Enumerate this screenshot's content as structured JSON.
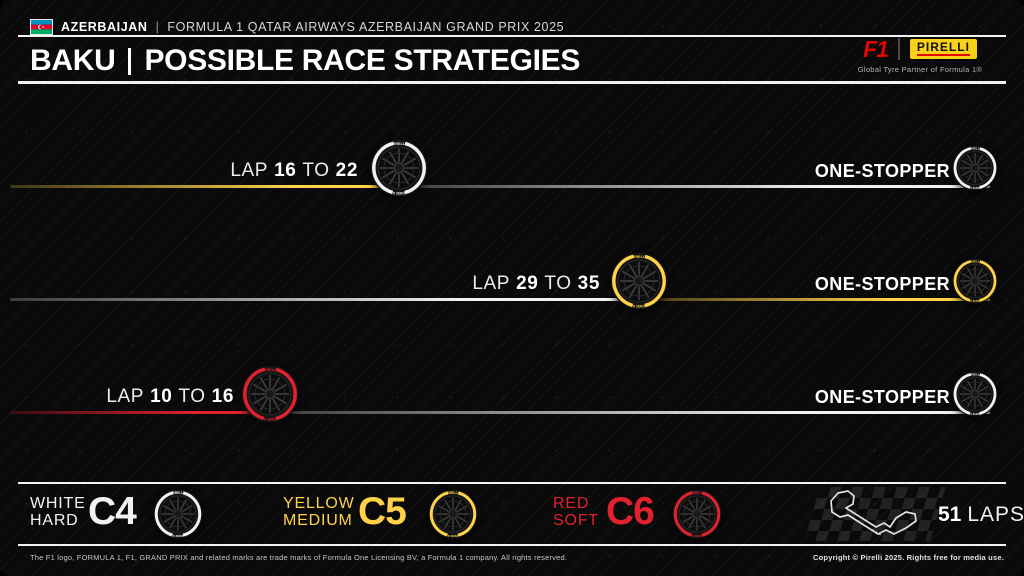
{
  "header": {
    "country": "AZERBAIJAN",
    "separator": "|",
    "event": "FORMULA 1 QATAR AIRWAYS AZERBAIJAN GRAND PRIX 2025",
    "city": "BAKU",
    "title": "POSSIBLE RACE STRATEGIES",
    "f1_logo_text": "F1",
    "pirelli_logo_text": "PIRELLI",
    "partner_caption": "Global Tyre Partner of Formula 1®"
  },
  "colors": {
    "hard": "#f2f2f2",
    "medium": "#ffd24a",
    "soft": "#e2212f"
  },
  "tyre": {
    "top_text": "PIRELLI",
    "bottom_text": "P ZERO"
  },
  "strategies": [
    {
      "lap_word": "LAP",
      "from": "16",
      "to_word": "TO",
      "to": "22",
      "start_compound": "medium",
      "end_compound": "hard",
      "result": "ONE-STOPPER"
    },
    {
      "lap_word": "LAP",
      "from": "29",
      "to_word": "TO",
      "to": "35",
      "start_compound": "hard",
      "end_compound": "medium",
      "result": "ONE-STOPPER"
    },
    {
      "lap_word": "LAP",
      "from": "10",
      "to_word": "TO",
      "to": "16",
      "start_compound": "soft",
      "end_compound": "hard",
      "result": "ONE-STOPPER"
    }
  ],
  "legend": {
    "items": [
      {
        "line1": "WHITE",
        "line2": "HARD",
        "code": "C4",
        "compound": "hard"
      },
      {
        "line1": "YELLOW",
        "line2": "MEDIUM",
        "code": "C5",
        "compound": "medium"
      },
      {
        "line1": "RED",
        "line2": "SOFT",
        "code": "C6",
        "compound": "soft"
      }
    ],
    "laps_value": "51",
    "laps_word": "LAPS"
  },
  "footer": {
    "left": "The F1 logo, FORMULA 1, F1, GRAND PRIX and related marks are trade marks of Formula One Licensing BV, a Formula 1 company. All rights reserved.",
    "right": "Copyright © Pirelli 2025. Rights free for media use."
  }
}
